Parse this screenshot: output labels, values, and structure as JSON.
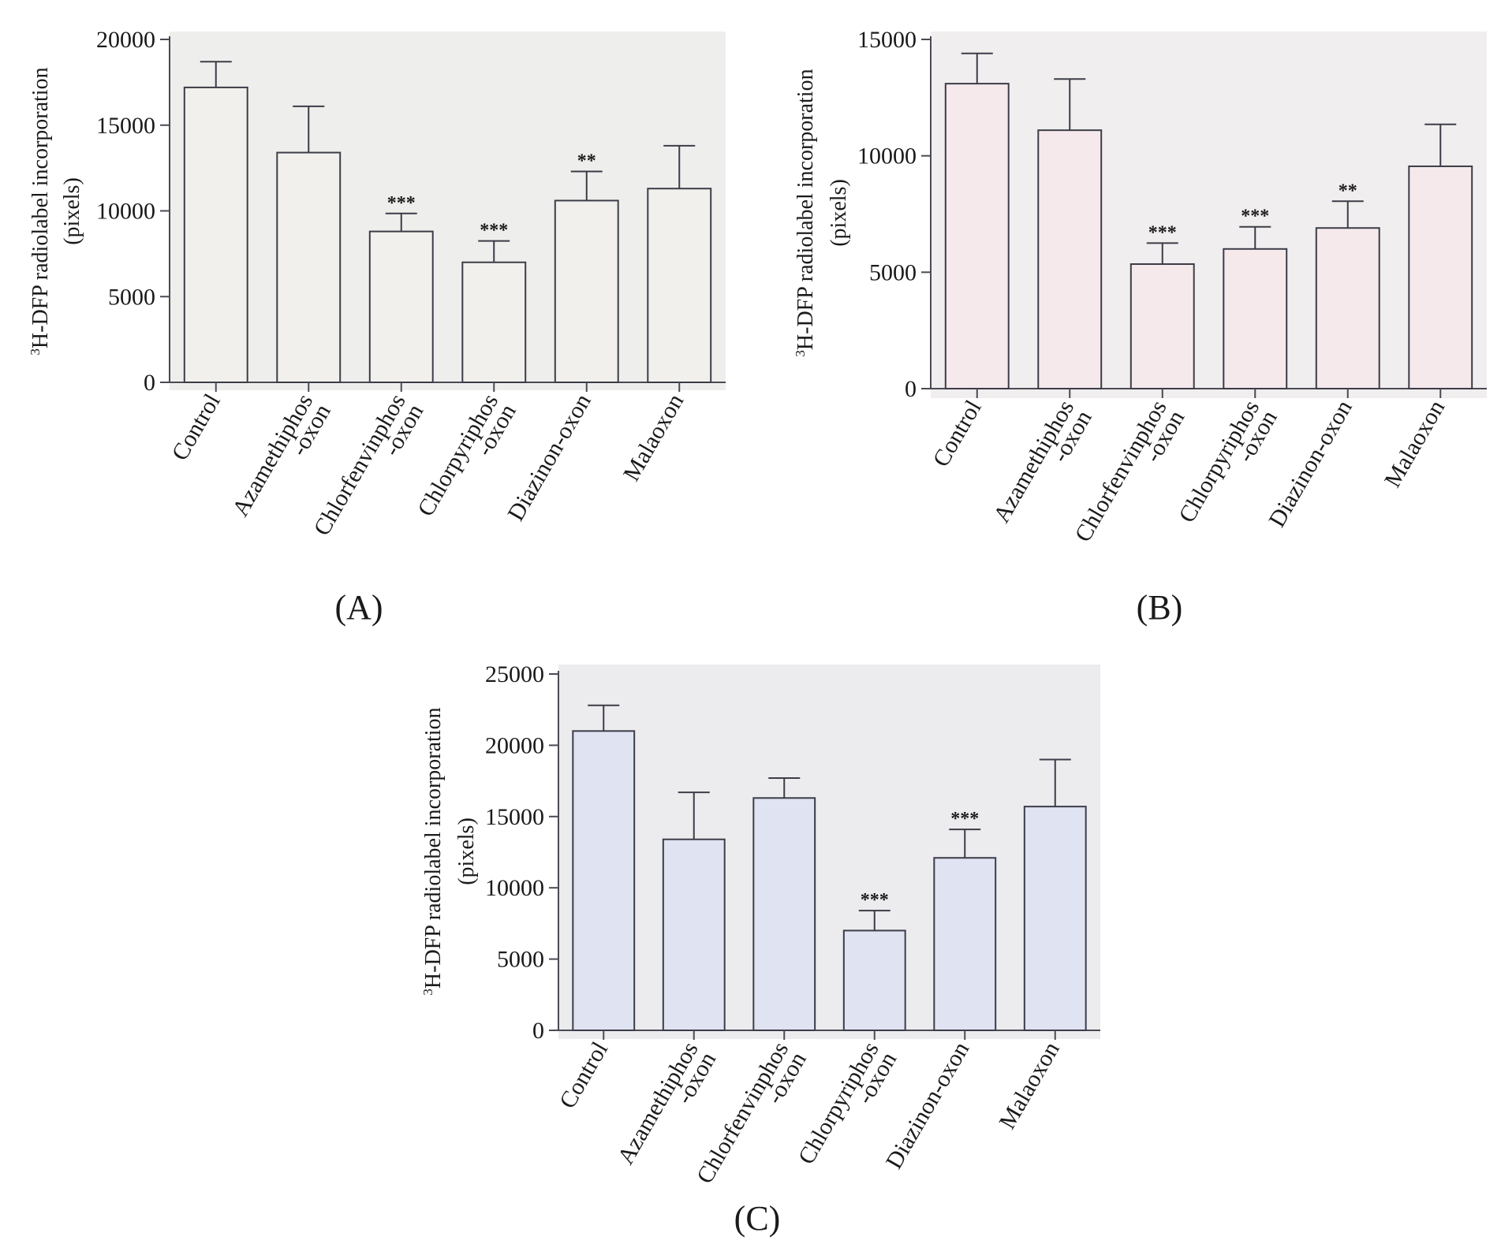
{
  "chart_data": [
    {
      "type": "bar",
      "panel_label": "(A)",
      "ylabel_sup": "3",
      "ylabel_line1": "H-DFP radiolabel incorporation",
      "ylabel_line2": "(pixels)",
      "categories": [
        {
          "line1": "Control",
          "line2": ""
        },
        {
          "line1": "Azamethiphos",
          "line2": "-oxon"
        },
        {
          "line1": "Chlorfenvinphos",
          "line2": "-oxon"
        },
        {
          "line1": "Chlorpyriphos",
          "line2": "-oxon"
        },
        {
          "line1": "Diazinon-oxon",
          "line2": ""
        },
        {
          "line1": "Malaoxon",
          "line2": ""
        }
      ],
      "values": [
        17200,
        13400,
        8800,
        7000,
        10600,
        11300
      ],
      "errors": [
        1500,
        2700,
        1050,
        1250,
        1700,
        2500
      ],
      "significance": [
        "",
        "",
        "***",
        "***",
        "**",
        ""
      ],
      "ylim": [
        0,
        20000
      ],
      "yticks": [
        "0",
        "5000",
        "10000",
        "15000",
        "20000"
      ],
      "bar_fill": "#f1f0ec",
      "plot_bg": "#eeeeec"
    },
    {
      "type": "bar",
      "panel_label": "(B)",
      "ylabel_sup": "3",
      "ylabel_line1": "H-DFP radiolabel incorporation",
      "ylabel_line2": "(pixels)",
      "categories": [
        {
          "line1": "Control",
          "line2": ""
        },
        {
          "line1": "Azamethiphos",
          "line2": "-oxon"
        },
        {
          "line1": "Chlorfenvinphos",
          "line2": "-oxon"
        },
        {
          "line1": "Chlorpyriphos",
          "line2": "-oxon"
        },
        {
          "line1": "Diazinon-oxon",
          "line2": ""
        },
        {
          "line1": "Malaoxon",
          "line2": ""
        }
      ],
      "values": [
        13100,
        11100,
        5350,
        6000,
        6900,
        9550
      ],
      "errors": [
        1300,
        2200,
        900,
        950,
        1150,
        1800
      ],
      "significance": [
        "",
        "",
        "***",
        "***",
        "**",
        ""
      ],
      "ylim": [
        0,
        15000
      ],
      "yticks": [
        "0",
        "5000",
        "10000",
        "15000"
      ],
      "bar_fill": "#f5e9ec",
      "plot_bg": "#f0eeee"
    },
    {
      "type": "bar",
      "panel_label": "(C)",
      "ylabel_sup": "3",
      "ylabel_line1": "H-DFP radiolabel incorporation",
      "ylabel_line2": "(pixels)",
      "categories": [
        {
          "line1": "Control",
          "line2": ""
        },
        {
          "line1": "Azamethiphos",
          "line2": "-oxon"
        },
        {
          "line1": "Chlorfenvinphos",
          "line2": "-oxon"
        },
        {
          "line1": "Chlorpyriphos",
          "line2": "-oxon"
        },
        {
          "line1": "Diazinon-oxon",
          "line2": ""
        },
        {
          "line1": "Malaoxon",
          "line2": ""
        }
      ],
      "values": [
        21000,
        13400,
        16300,
        7000,
        12100,
        15700
      ],
      "errors": [
        1800,
        3300,
        1400,
        1400,
        2000,
        3300
      ],
      "significance": [
        "",
        "",
        "",
        "***",
        "***",
        ""
      ],
      "ylim": [
        0,
        25000
      ],
      "yticks": [
        "0",
        "5000",
        "10000",
        "15000",
        "20000",
        "25000"
      ],
      "bar_fill": "#dfe3f2",
      "plot_bg": "#ececef"
    }
  ]
}
